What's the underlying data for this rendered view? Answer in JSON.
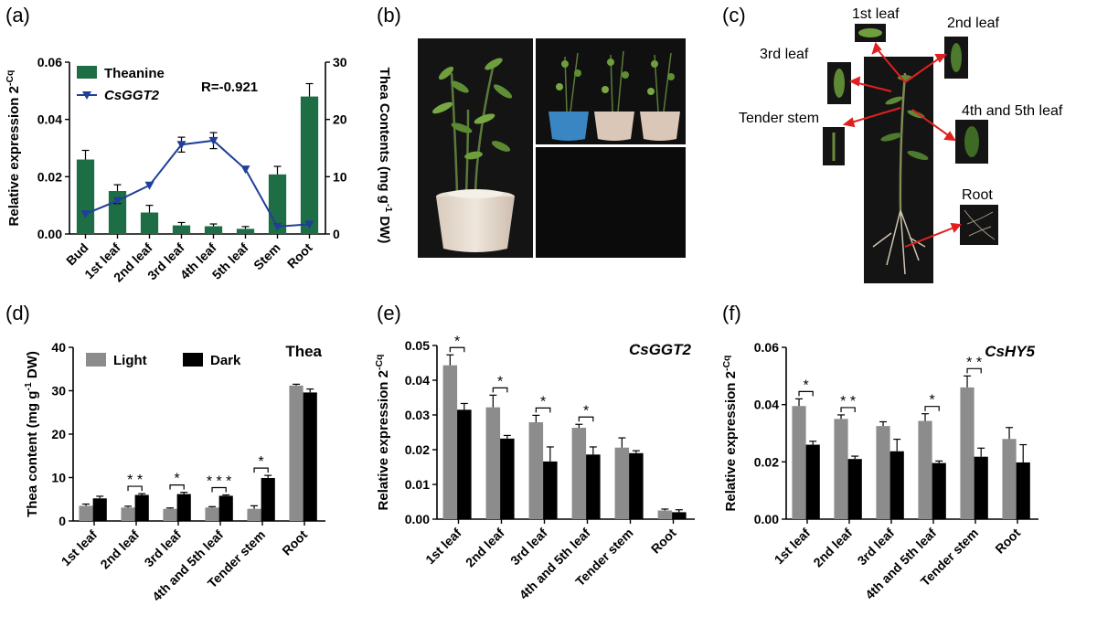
{
  "panels": {
    "a": {
      "label": "(a)",
      "chart_data": {
        "type": "bar+line",
        "categories": [
          "Bud",
          "1st leaf",
          "2nd leaf",
          "3rd leaf",
          "4th leaf",
          "5th leaf",
          "Stem",
          "Root"
        ],
        "ylabel": "Relative expression 2",
        "ylabel_sup": "-Cq",
        "y2label": "Thea Contents (mg g",
        "y2label_sup": "-1",
        "y2label_end": " DW)",
        "ylim": [
          0,
          0.06
        ],
        "yticks": [
          "0.00",
          "0.02",
          "0.04",
          "0.06"
        ],
        "y2lim": [
          0,
          30
        ],
        "y2ticks": [
          "0",
          "10",
          "20",
          "30"
        ],
        "annotation": "R=-0.921",
        "legend": [
          "Theanine",
          "CsGGT2"
        ],
        "series": [
          {
            "name": "Theanine",
            "kind": "bar",
            "axis": "left",
            "color": "#1e6e45",
            "values": [
              0.026,
              0.015,
              0.0075,
              0.003,
              0.0027,
              0.0018,
              0.0208,
              0.048
            ],
            "errors": [
              0.0032,
              0.0022,
              0.0025,
              0.001,
              0.0008,
              0.0008,
              0.0028,
              0.0045
            ]
          },
          {
            "name": "CsGGT2",
            "kind": "line",
            "axis": "right",
            "color": "#1f3f99",
            "values": [
              3.5,
              5.8,
              8.5,
              15.6,
              16.3,
              11.3,
              1.3,
              1.7
            ],
            "errors": [
              0,
              0.5,
              0,
              1.3,
              1.4,
              0,
              0,
              0
            ]
          }
        ]
      }
    },
    "b": {
      "label": "(b)"
    },
    "c": {
      "label": "(c)",
      "tissue_labels": [
        "1st leaf",
        "2nd leaf",
        "3rd leaf",
        "4th and 5th leaf",
        "Tender stem",
        "Root"
      ]
    },
    "d": {
      "label": "(d)",
      "chart_data": {
        "type": "bar",
        "title": "Thea",
        "categories": [
          "1st leaf",
          "2nd leaf",
          "3rd leaf",
          "4th and 5th leaf",
          "Tender stem",
          "Root"
        ],
        "ylabel": "Thea content (mg g",
        "ylabel_sup": "-1",
        "ylabel_end": " DW)",
        "ylim": [
          0,
          40
        ],
        "yticks": [
          "0",
          "10",
          "20",
          "30",
          "40"
        ],
        "legend": [
          "Light",
          "Dark"
        ],
        "series": [
          {
            "name": "Light",
            "color": "#8c8c8c",
            "values": [
              3.5,
              3.1,
              2.8,
              3.1,
              2.8,
              31.2
            ],
            "errors": [
              0.4,
              0.3,
              0.2,
              0.2,
              0.7,
              0.3
            ]
          },
          {
            "name": "Dark",
            "color": "#000000",
            "values": [
              5.2,
              6.0,
              6.2,
              5.8,
              9.9,
              29.6
            ],
            "errors": [
              0.5,
              0.3,
              0.4,
              0.2,
              0.6,
              0.8
            ]
          }
        ],
        "significance": [
          "",
          "**",
          "*",
          "***",
          "*",
          ""
        ]
      }
    },
    "e": {
      "label": "(e)",
      "chart_data": {
        "type": "bar",
        "title": "CsGGT2",
        "categories": [
          "1st leaf",
          "2nd leaf",
          "3rd leaf",
          "4th and 5th leaf",
          "Tender stem",
          "Root"
        ],
        "ylabel": "Relative expression 2",
        "ylabel_sup": "-Cq",
        "ylim": [
          0,
          0.05
        ],
        "yticks": [
          "0.00",
          "0.01",
          "0.02",
          "0.03",
          "0.04",
          "0.05"
        ],
        "series": [
          {
            "name": "Light",
            "color": "#8c8c8c",
            "values": [
              0.0443,
              0.0322,
              0.0279,
              0.0263,
              0.0206,
              0.0025
            ],
            "errors": [
              0.003,
              0.0035,
              0.002,
              0.001,
              0.0028,
              0.0004
            ]
          },
          {
            "name": "Dark",
            "color": "#000000",
            "values": [
              0.0315,
              0.0232,
              0.0166,
              0.0186,
              0.019,
              0.002
            ],
            "errors": [
              0.0018,
              0.0009,
              0.0042,
              0.0022,
              0.0007,
              0.0007
            ]
          }
        ],
        "significance": [
          "*",
          "*",
          "*",
          "*",
          "",
          ""
        ]
      }
    },
    "f": {
      "label": "(f)",
      "chart_data": {
        "type": "bar",
        "title": "CsHY5",
        "categories": [
          "1st leaf",
          "2nd leaf",
          "3rd leaf",
          "4th and 5th leaf",
          "Tender stem",
          "Root"
        ],
        "ylabel": "Relative expression 2",
        "ylabel_sup": "-Cq",
        "ylim": [
          0,
          0.06
        ],
        "yticks": [
          "0.00",
          "0.02",
          "0.04",
          "0.06"
        ],
        "series": [
          {
            "name": "Light",
            "color": "#8c8c8c",
            "values": [
              0.0395,
              0.035,
              0.0325,
              0.0343,
              0.046,
              0.028
            ],
            "errors": [
              0.0025,
              0.0014,
              0.0015,
              0.0025,
              0.004,
              0.004
            ]
          },
          {
            "name": "Dark",
            "color": "#000000",
            "values": [
              0.026,
              0.021,
              0.0237,
              0.0196,
              0.0218,
              0.0198
            ],
            "errors": [
              0.0012,
              0.001,
              0.0042,
              0.0007,
              0.003,
              0.0062
            ]
          }
        ],
        "significance": [
          "*",
          "**",
          "",
          "*",
          "**",
          ""
        ]
      }
    }
  }
}
